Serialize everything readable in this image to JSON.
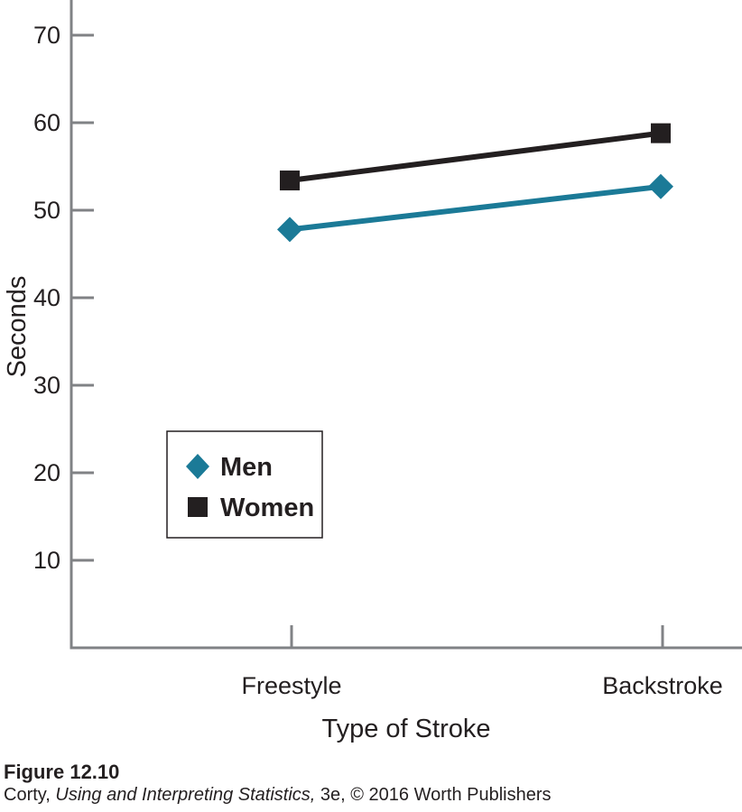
{
  "chart_data": {
    "type": "line",
    "categories": [
      "Freestyle",
      "Backstroke"
    ],
    "series": [
      {
        "name": "Men",
        "values": [
          47.8,
          52.7
        ],
        "color": "#1b7a97",
        "marker": "diamond"
      },
      {
        "name": "Women",
        "values": [
          53.4,
          58.8
        ],
        "color": "#231f20",
        "marker": "square"
      }
    ],
    "title": "",
    "xlabel": "Type of Stroke",
    "ylabel": "Seconds",
    "ylim": [
      0,
      70
    ],
    "yticks": [
      10,
      20,
      30,
      40,
      50,
      60,
      70
    ],
    "grid": false,
    "legend_position": "lower-left"
  },
  "caption": {
    "figure": "Figure 12.10",
    "author": "Corty, ",
    "book": "Using and Interpreting Statistics,",
    "edition": " 3e, © 2016 Worth Publishers"
  }
}
